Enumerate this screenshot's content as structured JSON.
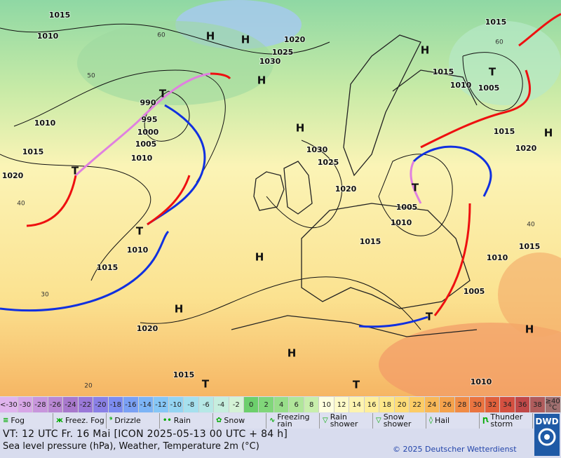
{
  "map": {
    "pressure_labels": [
      "1015",
      "1010",
      "1020",
      "1025",
      "1030",
      "990",
      "995",
      "1000",
      "1005",
      "1010",
      "1010",
      "1015",
      "1020",
      "1030",
      "1025",
      "1020",
      "1005",
      "1010",
      "1015",
      "1010",
      "1015",
      "1020",
      "1015",
      "1010",
      "1015",
      "1015",
      "1010",
      "1005",
      "1015",
      "1020",
      "1015",
      "1010",
      "1005"
    ],
    "pressure_centers": [
      "H",
      "H",
      "H",
      "H",
      "H",
      "H",
      "H",
      "H",
      "H",
      "H",
      "T",
      "T",
      "T",
      "T",
      "T",
      "T",
      "T",
      "T"
    ],
    "isotherm_labels": [
      "60",
      "50",
      "40",
      "30",
      "20",
      "60",
      "40"
    ]
  },
  "legend": {
    "scale": [
      {
        "label": "<-30",
        "color": "#e0b4ee"
      },
      {
        "label": "-30",
        "color": "#d7a6e6"
      },
      {
        "label": "-28",
        "color": "#c896dc"
      },
      {
        "label": "-26",
        "color": "#b987d3"
      },
      {
        "label": "-24",
        "color": "#a878cc"
      },
      {
        "label": "-22",
        "color": "#9a78d8"
      },
      {
        "label": "-20",
        "color": "#8a80e6"
      },
      {
        "label": "-18",
        "color": "#7c8cf0"
      },
      {
        "label": "-16",
        "color": "#7aa0f4"
      },
      {
        "label": "-14",
        "color": "#7cb4f6"
      },
      {
        "label": "-12",
        "color": "#86c6f6"
      },
      {
        "label": "-10",
        "color": "#94d4f2"
      },
      {
        "label": "-8",
        "color": "#a6e0ee"
      },
      {
        "label": "-6",
        "color": "#b6e8e6"
      },
      {
        "label": "-4",
        "color": "#c6eede"
      },
      {
        "label": "-2",
        "color": "#d4f2d6"
      },
      {
        "label": "0",
        "color": "#6ccf6c"
      },
      {
        "label": "2",
        "color": "#80d67a"
      },
      {
        "label": "4",
        "color": "#98de8a"
      },
      {
        "label": "6",
        "color": "#b0e69a"
      },
      {
        "label": "8",
        "color": "#c8eeac"
      },
      {
        "label": "10",
        "color": "#fefede"
      },
      {
        "label": "12",
        "color": "#fefac8"
      },
      {
        "label": "14",
        "color": "#fef4b0"
      },
      {
        "label": "16",
        "color": "#feee9c"
      },
      {
        "label": "18",
        "color": "#fee88a"
      },
      {
        "label": "20",
        "color": "#fedc78"
      },
      {
        "label": "22",
        "color": "#fccc66"
      },
      {
        "label": "24",
        "color": "#f8b858"
      },
      {
        "label": "26",
        "color": "#f4a24c"
      },
      {
        "label": "28",
        "color": "#f08c46"
      },
      {
        "label": "30",
        "color": "#ea7440"
      },
      {
        "label": "32",
        "color": "#e0603c"
      },
      {
        "label": "34",
        "color": "#d45040"
      },
      {
        "label": "36",
        "color": "#c04848"
      },
      {
        "label": "38",
        "color": "#b05c5c"
      },
      {
        "label": "≥40 °C",
        "color": "#a07070"
      }
    ],
    "symbols": [
      "Fog",
      "Freez. Fog",
      "Drizzle",
      "Rain",
      "Snow",
      "Freezing rain",
      "Rain shower",
      "Snow shower",
      "Hail",
      "Thunder storm"
    ]
  },
  "footer": {
    "valid_time": "VT: 12 UTC Fr.  16 Mai [ICON 2025-05-13  00 UTC + 84 h]",
    "description": "Sea level pressure (hPa), Weather, Temperature 2m (°C)",
    "copyright": "© 2025 Deutscher Wetterdienst",
    "logo": "DWD"
  }
}
